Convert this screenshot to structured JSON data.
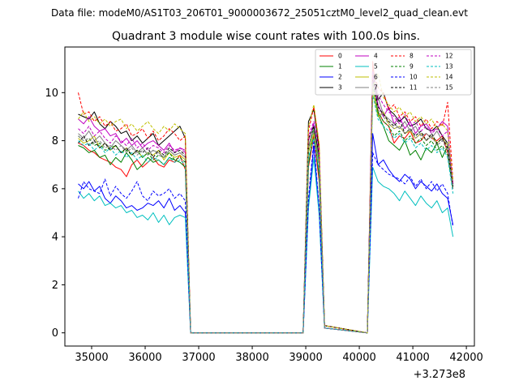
{
  "chart_data": {
    "type": "line",
    "suptitle": "Data file: modeM0/AS1T03_206T01_9000003672_25051cztM0_level2_quad_clean.evt",
    "title": "Quadrant 3 module wise count rates with 100.0s bins.",
    "xlabel": "",
    "ylabel": "",
    "x_offset_label": "+3.273e8",
    "xlim": [
      34500,
      42150
    ],
    "ylim": [
      -0.55,
      11.9
    ],
    "xticks": [
      35000,
      36000,
      37000,
      38000,
      39000,
      40000,
      41000,
      42000
    ],
    "xtick_labels": [
      "35000",
      "36000",
      "37000",
      "38000",
      "39000",
      "40000",
      "41000",
      "42000"
    ],
    "yticks": [
      0,
      2,
      4,
      6,
      8,
      10
    ],
    "ytick_labels": [
      "0",
      "2",
      "4",
      "6",
      "8",
      "10"
    ],
    "x_start": 34750,
    "x_step": 100,
    "gaps": [
      [
        37050,
        39050
      ],
      [
        39550,
        40250
      ]
    ],
    "series": [
      {
        "name": "0",
        "color": "#ff0000",
        "dash": false,
        "segments": [
          [
            7.9,
            7.8,
            7.6,
            7.5,
            7.3,
            7.2,
            7.1,
            6.9,
            6.8,
            6.5,
            7.0,
            7.2,
            6.9,
            7.1,
            7.3,
            7.0,
            6.9,
            7.2,
            7.1,
            7.4,
            6.8,
            0
          ],
          [
            6.9,
            8.2,
            6.3,
            0.2
          ],
          [
            11.3,
            9.2,
            8.8,
            8.6,
            7.9,
            8.2,
            8.1,
            8.4,
            7.9,
            8.0,
            8.3,
            8.1,
            8.0,
            8.2,
            7.5,
            6.0
          ]
        ]
      },
      {
        "name": "1",
        "color": "#008000",
        "dash": false,
        "segments": [
          [
            7.8,
            7.7,
            7.5,
            7.6,
            7.3,
            7.4,
            7.0,
            7.3,
            7.1,
            7.5,
            7.2,
            6.8,
            7.0,
            7.3,
            7.1,
            7.2,
            7.0,
            7.3,
            7.2,
            7.1,
            6.9,
            0
          ],
          [
            7.0,
            8.4,
            6.5,
            0.2
          ],
          [
            10.6,
            9.1,
            8.6,
            8.0,
            7.8,
            7.6,
            8.0,
            7.4,
            7.6,
            7.2,
            7.7,
            7.5,
            7.9,
            7.3,
            7.8,
            6.1
          ]
        ]
      },
      {
        "name": "2",
        "color": "#0000ff",
        "dash": false,
        "segments": [
          [
            6.2,
            6.0,
            6.3,
            5.9,
            6.1,
            5.6,
            5.4,
            5.7,
            5.5,
            5.2,
            5.3,
            5.1,
            5.2,
            5.4,
            5.3,
            5.5,
            5.2,
            5.6,
            5.1,
            5.3,
            5.0,
            0
          ],
          [
            5.3,
            7.8,
            5.0,
            0.2
          ],
          [
            8.3,
            7.0,
            7.2,
            6.8,
            6.5,
            6.3,
            6.6,
            6.4,
            6.0,
            6.3,
            6.1,
            5.9,
            6.2,
            5.8,
            5.6,
            4.5
          ]
        ]
      },
      {
        "name": "3",
        "color": "#000000",
        "dash": false,
        "segments": [
          [
            9.1,
            9.0,
            8.9,
            9.2,
            8.7,
            8.5,
            8.8,
            8.6,
            8.3,
            8.4,
            8.0,
            8.2,
            7.9,
            8.1,
            8.3,
            7.8,
            8.0,
            8.2,
            8.4,
            8.6,
            8.1,
            0
          ],
          [
            8.8,
            9.3,
            7.6,
            0.3
          ],
          [
            10.8,
            9.7,
            10.0,
            9.3,
            9.1,
            8.8,
            9.0,
            8.6,
            8.7,
            8.9,
            8.5,
            8.4,
            8.6,
            8.2,
            7.9,
            6.2
          ]
        ]
      },
      {
        "name": "4",
        "color": "#c000c0",
        "dash": false,
        "segments": [
          [
            8.9,
            8.7,
            9.0,
            8.6,
            8.4,
            8.5,
            8.2,
            8.3,
            7.9,
            8.1,
            7.8,
            8.0,
            7.7,
            7.9,
            8.0,
            7.8,
            7.6,
            7.9,
            7.5,
            7.7,
            7.6,
            0
          ],
          [
            8.0,
            8.7,
            7.3,
            0.2
          ],
          [
            10.7,
            9.5,
            9.0,
            9.4,
            8.7,
            9.0,
            8.5,
            8.8,
            8.3,
            8.6,
            8.7,
            8.4,
            8.5,
            8.8,
            8.6,
            6.0
          ]
        ]
      },
      {
        "name": "5",
        "color": "#00bfbf",
        "dash": false,
        "segments": [
          [
            5.9,
            5.6,
            5.8,
            5.5,
            5.7,
            5.3,
            5.4,
            5.2,
            5.3,
            5.0,
            5.1,
            4.8,
            4.9,
            4.7,
            5.0,
            4.6,
            4.9,
            4.5,
            4.8,
            4.9,
            4.8,
            0
          ],
          [
            5.2,
            7.3,
            4.9,
            0.2
          ],
          [
            6.9,
            6.3,
            6.1,
            6.0,
            5.8,
            5.5,
            5.9,
            5.6,
            5.3,
            5.7,
            5.4,
            5.2,
            5.5,
            5.0,
            5.2,
            4.0
          ]
        ]
      },
      {
        "name": "6",
        "color": "#bfbf00",
        "dash": false,
        "segments": [
          [
            8.1,
            7.9,
            8.0,
            8.2,
            7.7,
            7.9,
            7.6,
            7.8,
            7.5,
            7.7,
            7.4,
            7.6,
            7.3,
            7.5,
            7.4,
            7.6,
            7.2,
            7.5,
            7.3,
            7.4,
            7.2,
            0
          ],
          [
            7.5,
            8.3,
            7.0,
            0.2
          ],
          [
            10.1,
            9.0,
            9.2,
            8.7,
            8.5,
            8.6,
            8.3,
            8.4,
            8.1,
            8.3,
            8.0,
            8.2,
            7.9,
            8.1,
            7.8,
            6.0
          ]
        ]
      },
      {
        "name": "7",
        "color": "#808080",
        "dash": false,
        "segments": [
          [
            8.3,
            8.1,
            8.4,
            8.0,
            8.2,
            7.9,
            7.7,
            8.0,
            7.8,
            7.6,
            7.8,
            7.5,
            7.7,
            7.4,
            7.6,
            7.5,
            7.3,
            7.6,
            7.4,
            7.5,
            7.3,
            0
          ],
          [
            7.8,
            8.5,
            7.1,
            0.2
          ],
          [
            11.0,
            9.8,
            9.1,
            8.9,
            8.7,
            8.5,
            8.8,
            8.4,
            8.6,
            8.2,
            8.3,
            8.1,
            8.4,
            8.0,
            7.9,
            6.1
          ]
        ]
      },
      {
        "name": "8",
        "color": "#ff0000",
        "dash": true,
        "segments": [
          [
            10.0,
            9.1,
            9.2,
            8.8,
            9.0,
            8.6,
            8.8,
            8.4,
            8.5,
            8.7,
            8.2,
            8.3,
            8.5,
            8.1,
            8.4,
            8.0,
            8.2,
            8.5,
            8.3,
            8.0,
            8.2,
            0
          ],
          [
            8.4,
            9.4,
            7.8,
            0.3
          ],
          [
            11.0,
            10.2,
            10.0,
            9.3,
            9.5,
            9.0,
            9.2,
            8.8,
            9.0,
            8.6,
            8.9,
            8.5,
            8.8,
            8.6,
            9.6,
            6.3
          ]
        ]
      },
      {
        "name": "9",
        "color": "#008000",
        "dash": true,
        "segments": [
          [
            8.2,
            8.0,
            8.1,
            7.8,
            7.9,
            7.6,
            7.7,
            7.8,
            7.5,
            7.6,
            7.4,
            7.6,
            7.3,
            7.5,
            7.2,
            7.4,
            7.3,
            7.5,
            7.2,
            7.3,
            7.1,
            0
          ],
          [
            7.6,
            8.6,
            7.2,
            0.2
          ],
          [
            10.3,
            9.2,
            8.8,
            8.6,
            8.2,
            8.4,
            8.0,
            8.2,
            7.9,
            8.1,
            7.8,
            8.0,
            7.6,
            7.8,
            7.4,
            6.0
          ]
        ]
      },
      {
        "name": "10",
        "color": "#0000ff",
        "dash": true,
        "segments": [
          [
            5.6,
            6.3,
            6.0,
            5.9,
            5.8,
            6.4,
            5.7,
            6.1,
            5.8,
            5.6,
            5.9,
            6.3,
            5.7,
            5.5,
            5.9,
            5.7,
            5.8,
            6.0,
            5.6,
            5.8,
            5.5,
            0
          ],
          [
            5.6,
            8.0,
            5.2,
            0.2
          ],
          [
            7.5,
            7.0,
            6.8,
            6.6,
            6.5,
            6.4,
            6.2,
            6.5,
            6.1,
            6.4,
            6.0,
            6.3,
            5.9,
            6.2,
            5.8,
            4.4
          ]
        ]
      },
      {
        "name": "11",
        "color": "#000000",
        "dash": true,
        "segments": [
          [
            7.9,
            8.2,
            7.8,
            8.0,
            7.7,
            7.9,
            7.6,
            7.8,
            7.5,
            7.7,
            7.4,
            7.6,
            7.5,
            7.7,
            7.3,
            7.6,
            7.4,
            7.7,
            7.5,
            7.6,
            7.4,
            0
          ],
          [
            8.1,
            8.6,
            7.4,
            0.3
          ],
          [
            10.5,
            9.4,
            9.1,
            8.8,
            8.6,
            8.9,
            8.3,
            8.5,
            8.2,
            8.4,
            8.0,
            8.3,
            7.9,
            8.1,
            7.7,
            6.1
          ]
        ]
      },
      {
        "name": "12",
        "color": "#c000c0",
        "dash": true,
        "segments": [
          [
            8.5,
            8.3,
            8.6,
            8.2,
            8.4,
            8.1,
            7.9,
            8.2,
            8.0,
            7.8,
            8.1,
            7.7,
            7.9,
            7.6,
            7.8,
            7.7,
            7.5,
            7.8,
            7.6,
            7.7,
            7.5,
            0
          ],
          [
            8.2,
            8.8,
            7.5,
            0.2
          ],
          [
            10.9,
            9.9,
            9.5,
            9.2,
            9.0,
            8.7,
            9.1,
            8.6,
            8.8,
            8.4,
            8.6,
            8.3,
            8.5,
            8.2,
            8.4,
            6.2
          ]
        ]
      },
      {
        "name": "13",
        "color": "#00bfbf",
        "dash": true,
        "segments": [
          [
            8.0,
            7.8,
            7.9,
            7.6,
            7.8,
            7.5,
            7.7,
            7.4,
            7.6,
            7.3,
            7.5,
            7.2,
            7.4,
            7.1,
            7.3,
            7.2,
            7.0,
            7.3,
            7.1,
            7.2,
            7.0,
            0
          ],
          [
            7.3,
            8.1,
            6.8,
            0.2
          ],
          [
            9.9,
            8.9,
            8.6,
            8.4,
            8.1,
            8.3,
            7.9,
            8.1,
            7.7,
            7.9,
            7.6,
            7.8,
            7.5,
            7.7,
            7.3,
            5.8
          ]
        ]
      },
      {
        "name": "14",
        "color": "#bfbf00",
        "dash": true,
        "segments": [
          [
            8.9,
            9.2,
            8.8,
            9.0,
            8.7,
            8.9,
            8.6,
            8.8,
            8.9,
            8.5,
            8.7,
            8.4,
            8.6,
            8.8,
            8.5,
            8.3,
            8.6,
            8.4,
            8.7,
            8.5,
            8.3,
            0
          ],
          [
            8.6,
            9.5,
            7.9,
            0.3
          ],
          [
            10.2,
            10.8,
            9.8,
            9.5,
            9.2,
            9.4,
            9.0,
            9.2,
            8.8,
            9.0,
            8.7,
            8.9,
            8.5,
            8.7,
            8.4,
            6.3
          ]
        ]
      },
      {
        "name": "15",
        "color": "#808080",
        "dash": true,
        "segments": [
          [
            8.2,
            8.0,
            8.1,
            7.9,
            8.0,
            7.7,
            7.8,
            7.6,
            7.8,
            7.5,
            7.7,
            7.4,
            7.6,
            7.5,
            7.6,
            7.4,
            7.3,
            7.6,
            7.4,
            7.5,
            7.3,
            0
          ],
          [
            7.7,
            8.4,
            7.1,
            0.2
          ],
          [
            10.4,
            9.3,
            9.0,
            8.7,
            8.5,
            8.6,
            8.3,
            8.5,
            8.1,
            8.3,
            8.0,
            8.2,
            7.8,
            8.0,
            7.6,
            6.0
          ]
        ]
      }
    ],
    "legend_location": "upper right",
    "legend_columns": 4
  }
}
